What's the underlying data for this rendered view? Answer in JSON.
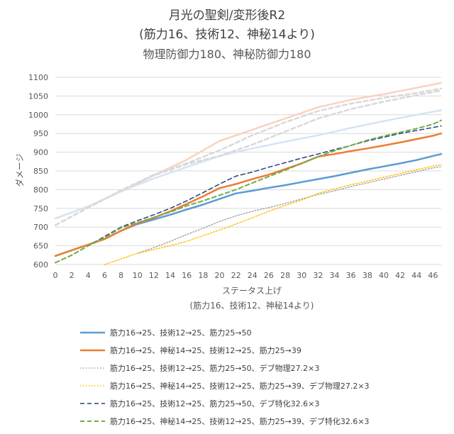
{
  "chart_data": {
    "type": "line",
    "title": "月光の聖剣/変形後R2",
    "subtitle": "(筋力16、技術12、神秘14より)",
    "subtitle2": "物理防御力180、神秘防御力180",
    "xlabel": "ステータス上げ",
    "xlabel2": "(筋力16、技術12、神秘14より)",
    "ylabel": "ダメージ",
    "xlim": [
      0,
      47
    ],
    "ylim": [
      600,
      1100
    ],
    "xticks": [
      0,
      2,
      4,
      6,
      8,
      10,
      12,
      14,
      16,
      18,
      20,
      22,
      24,
      26,
      28,
      30,
      32,
      34,
      36,
      38,
      40,
      42,
      44,
      46
    ],
    "yticks": [
      600,
      650,
      700,
      750,
      800,
      850,
      900,
      950,
      1000,
      1050,
      1100
    ],
    "grid": true,
    "legend_position": "bottom",
    "series": [
      {
        "name": "筋力16→25、技術12→25、筋力25→50",
        "color": "#5b9bd5",
        "style": "solid",
        "width": 2.5,
        "points": [
          [
            0,
            623
          ],
          [
            2,
            638
          ],
          [
            4,
            653
          ],
          [
            6,
            668
          ],
          [
            8,
            690
          ],
          [
            10,
            708
          ],
          [
            12,
            720
          ],
          [
            14,
            733
          ],
          [
            16,
            747
          ],
          [
            18,
            760
          ],
          [
            20,
            775
          ],
          [
            22,
            790
          ],
          [
            24,
            797
          ],
          [
            26,
            805
          ],
          [
            28,
            812
          ],
          [
            30,
            820
          ],
          [
            32,
            828
          ],
          [
            34,
            836
          ],
          [
            36,
            845
          ],
          [
            38,
            854
          ],
          [
            40,
            862
          ],
          [
            42,
            870
          ],
          [
            44,
            879
          ],
          [
            46,
            890
          ],
          [
            47,
            895
          ]
        ]
      },
      {
        "name": "筋力16→25、神秘14→25、技術12→25、筋力25→39",
        "color": "#ed7d31",
        "style": "solid",
        "width": 2.5,
        "points": [
          [
            0,
            623
          ],
          [
            2,
            638
          ],
          [
            4,
            653
          ],
          [
            6,
            668
          ],
          [
            8,
            690
          ],
          [
            10,
            710
          ],
          [
            12,
            725
          ],
          [
            14,
            742
          ],
          [
            16,
            762
          ],
          [
            18,
            782
          ],
          [
            20,
            804
          ],
          [
            22,
            815
          ],
          [
            24,
            828
          ],
          [
            26,
            840
          ],
          [
            28,
            855
          ],
          [
            30,
            870
          ],
          [
            32,
            888
          ],
          [
            34,
            895
          ],
          [
            36,
            903
          ],
          [
            38,
            910
          ],
          [
            40,
            918
          ],
          [
            42,
            926
          ],
          [
            44,
            935
          ],
          [
            46,
            944
          ],
          [
            47,
            950
          ]
        ]
      },
      {
        "name": "筋力16→25、技術12→25、筋力25→50、デブ物理27.2×3",
        "color": "#a5a5a5",
        "style": "dotted",
        "width": 1.5,
        "points": [
          [
            10,
            630
          ],
          [
            12,
            645
          ],
          [
            14,
            662
          ],
          [
            16,
            680
          ],
          [
            18,
            697
          ],
          [
            20,
            715
          ],
          [
            22,
            730
          ],
          [
            24,
            742
          ],
          [
            26,
            752
          ],
          [
            28,
            763
          ],
          [
            30,
            775
          ],
          [
            32,
            787
          ],
          [
            34,
            797
          ],
          [
            36,
            808
          ],
          [
            38,
            818
          ],
          [
            40,
            828
          ],
          [
            42,
            838
          ],
          [
            44,
            848
          ],
          [
            46,
            858
          ],
          [
            47,
            862
          ]
        ]
      },
      {
        "name": "筋力16→25、神秘14→25、技術12→25、筋力25→39、デブ物理27.2×3",
        "color": "#ffc000",
        "style": "dotted",
        "width": 1.5,
        "points": [
          [
            6,
            600
          ],
          [
            8,
            615
          ],
          [
            10,
            630
          ],
          [
            12,
            640
          ],
          [
            14,
            650
          ],
          [
            16,
            662
          ],
          [
            18,
            677
          ],
          [
            20,
            692
          ],
          [
            22,
            708
          ],
          [
            24,
            725
          ],
          [
            26,
            742
          ],
          [
            28,
            758
          ],
          [
            30,
            772
          ],
          [
            32,
            790
          ],
          [
            34,
            802
          ],
          [
            36,
            813
          ],
          [
            38,
            823
          ],
          [
            40,
            833
          ],
          [
            42,
            843
          ],
          [
            44,
            853
          ],
          [
            46,
            863
          ],
          [
            47,
            867
          ]
        ]
      },
      {
        "name": "筋力16→25、技術12→25、筋力25→50、デブ特化32.6×3",
        "color": "#264478",
        "style": "dashed",
        "width": 1.5,
        "points": [
          [
            0,
            605
          ],
          [
            2,
            625
          ],
          [
            4,
            650
          ],
          [
            6,
            675
          ],
          [
            8,
            700
          ],
          [
            10,
            717
          ],
          [
            12,
            733
          ],
          [
            14,
            750
          ],
          [
            16,
            770
          ],
          [
            18,
            792
          ],
          [
            20,
            815
          ],
          [
            22,
            836
          ],
          [
            24,
            847
          ],
          [
            26,
            860
          ],
          [
            28,
            872
          ],
          [
            30,
            884
          ],
          [
            32,
            895
          ],
          [
            34,
            907
          ],
          [
            36,
            918
          ],
          [
            38,
            930
          ],
          [
            40,
            940
          ],
          [
            42,
            950
          ],
          [
            44,
            958
          ],
          [
            46,
            966
          ],
          [
            47,
            970
          ]
        ]
      },
      {
        "name": "筋力16→25、神秘14→25、技術12→25、筋力25→39、デブ特化32.6×3",
        "color": "#70ad47",
        "style": "dashed",
        "width": 2,
        "points": [
          [
            0,
            605
          ],
          [
            2,
            625
          ],
          [
            4,
            650
          ],
          [
            6,
            672
          ],
          [
            8,
            698
          ],
          [
            10,
            712
          ],
          [
            12,
            726
          ],
          [
            14,
            740
          ],
          [
            16,
            757
          ],
          [
            18,
            770
          ],
          [
            20,
            785
          ],
          [
            22,
            800
          ],
          [
            24,
            818
          ],
          [
            26,
            835
          ],
          [
            28,
            852
          ],
          [
            30,
            870
          ],
          [
            32,
            888
          ],
          [
            34,
            904
          ],
          [
            36,
            918
          ],
          [
            38,
            932
          ],
          [
            40,
            943
          ],
          [
            42,
            953
          ],
          [
            44,
            963
          ],
          [
            46,
            975
          ],
          [
            47,
            985
          ]
        ]
      }
    ],
    "faded_series": [
      {
        "color": "#fad2bd",
        "style": "solid",
        "points": [
          [
            0,
            723
          ],
          [
            4,
            755
          ],
          [
            8,
            795
          ],
          [
            12,
            838
          ],
          [
            16,
            880
          ],
          [
            20,
            930
          ],
          [
            24,
            960
          ],
          [
            28,
            990
          ],
          [
            32,
            1020
          ],
          [
            36,
            1040
          ],
          [
            40,
            1055
          ],
          [
            44,
            1072
          ],
          [
            47,
            1085
          ]
        ]
      },
      {
        "color": "#d5e4f3",
        "style": "solid",
        "points": [
          [
            0,
            723
          ],
          [
            4,
            755
          ],
          [
            8,
            795
          ],
          [
            12,
            830
          ],
          [
            16,
            860
          ],
          [
            20,
            890
          ],
          [
            24,
            910
          ],
          [
            28,
            928
          ],
          [
            32,
            945
          ],
          [
            36,
            965
          ],
          [
            40,
            983
          ],
          [
            44,
            1000
          ],
          [
            47,
            1012
          ]
        ]
      },
      {
        "color": "#d9d9d9",
        "style": "dashed",
        "points": [
          [
            0,
            705
          ],
          [
            4,
            752
          ],
          [
            8,
            798
          ],
          [
            12,
            840
          ],
          [
            16,
            870
          ],
          [
            20,
            905
          ],
          [
            24,
            945
          ],
          [
            28,
            980
          ],
          [
            32,
            1010
          ],
          [
            36,
            1030
          ],
          [
            40,
            1045
          ],
          [
            44,
            1058
          ],
          [
            47,
            1070
          ]
        ]
      },
      {
        "color": "#d9d9d9",
        "style": "dashed",
        "points": [
          [
            0,
            705
          ],
          [
            4,
            752
          ],
          [
            8,
            798
          ],
          [
            12,
            838
          ],
          [
            16,
            868
          ],
          [
            20,
            890
          ],
          [
            24,
            920
          ],
          [
            28,
            955
          ],
          [
            32,
            990
          ],
          [
            36,
            1015
          ],
          [
            40,
            1035
          ],
          [
            44,
            1052
          ],
          [
            47,
            1065
          ]
        ]
      }
    ]
  }
}
